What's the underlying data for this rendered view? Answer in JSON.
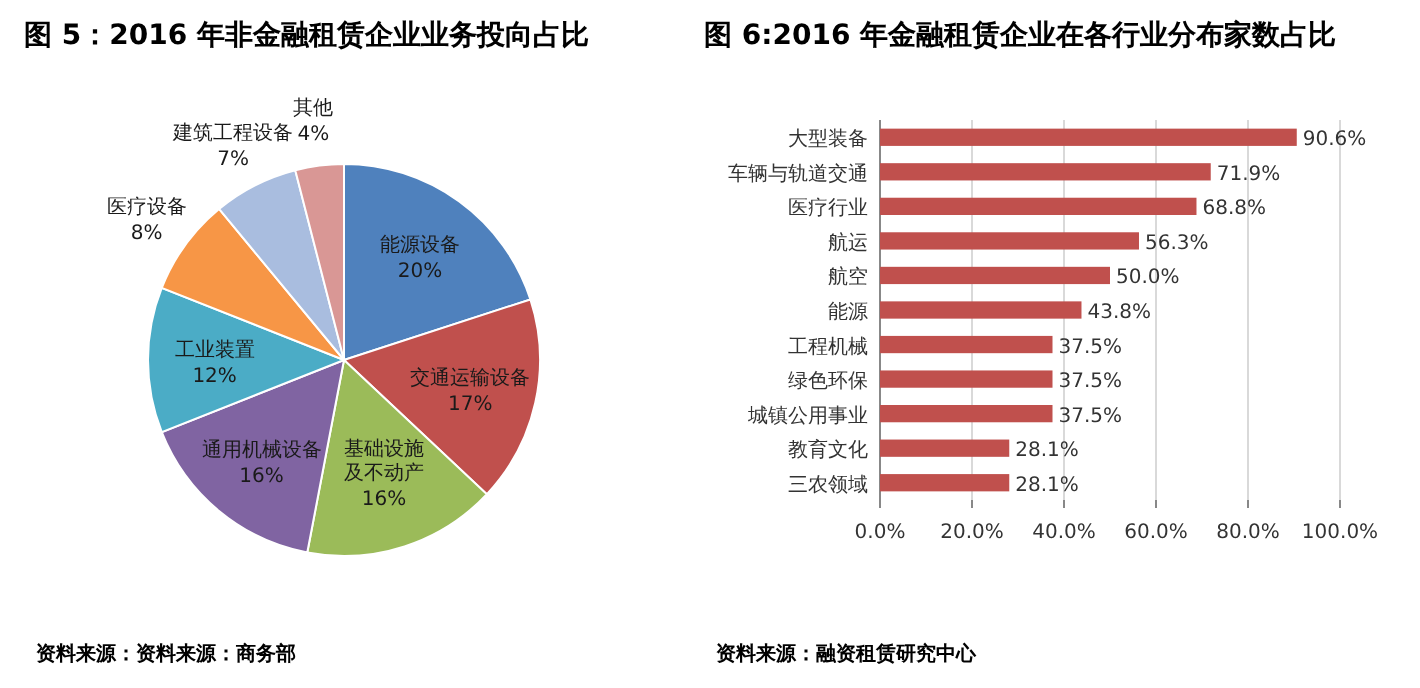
{
  "chart_data": [
    {
      "type": "pie",
      "title": "图 5：2016 年非金融租赁企业业务投向占比",
      "categories": [
        "能源设备",
        "交通运输设备",
        "基础设施及不动产",
        "通用机械设备",
        "工业装置",
        "医疗设备",
        "建筑工程设备",
        "其他"
      ],
      "values": [
        20,
        17,
        16,
        16,
        12,
        8,
        7,
        4
      ],
      "colors": [
        "#4f81bd",
        "#c0504d",
        "#9bbb59",
        "#8064a2",
        "#4bacc6",
        "#f79646",
        "#a9bddf",
        "#d99795"
      ],
      "value_labels": [
        "20%",
        "17%",
        "16%",
        "16%",
        "12%",
        "8%",
        "7%",
        "4%"
      ],
      "annotations": [
        "资料来源：资料来源：商务部"
      ]
    },
    {
      "type": "bar",
      "orientation": "horizontal",
      "title": "图 6:2016 年金融租赁企业在各行业分布家数占比",
      "categories": [
        "大型装备",
        "车辆与轨道交通",
        "医疗行业",
        "航运",
        "航空",
        "能源",
        "工程机械",
        "绿色环保",
        "城镇公用事业",
        "教育文化",
        "三农领域"
      ],
      "values": [
        90.6,
        71.9,
        68.8,
        56.3,
        50.0,
        43.8,
        37.5,
        37.5,
        37.5,
        28.1,
        28.1
      ],
      "value_labels": [
        "90.6%",
        "71.9%",
        "68.8%",
        "56.3%",
        "50.0%",
        "43.8%",
        "37.5%",
        "37.5%",
        "37.5%",
        "28.1%",
        "28.1%"
      ],
      "color": "#c0504d",
      "xlim": [
        0,
        100
      ],
      "xticks": [
        {
          "value": 0,
          "label": "0.0%"
        },
        {
          "value": 20,
          "label": "20.0%"
        },
        {
          "value": 40,
          "label": "40.0%"
        },
        {
          "value": 60,
          "label": "60.0%"
        },
        {
          "value": 80,
          "label": "80.0%"
        },
        {
          "value": 100,
          "label": "100.0%"
        }
      ],
      "grid": "x",
      "annotations": [
        "资料来源：融资租赁研究中心"
      ]
    }
  ]
}
